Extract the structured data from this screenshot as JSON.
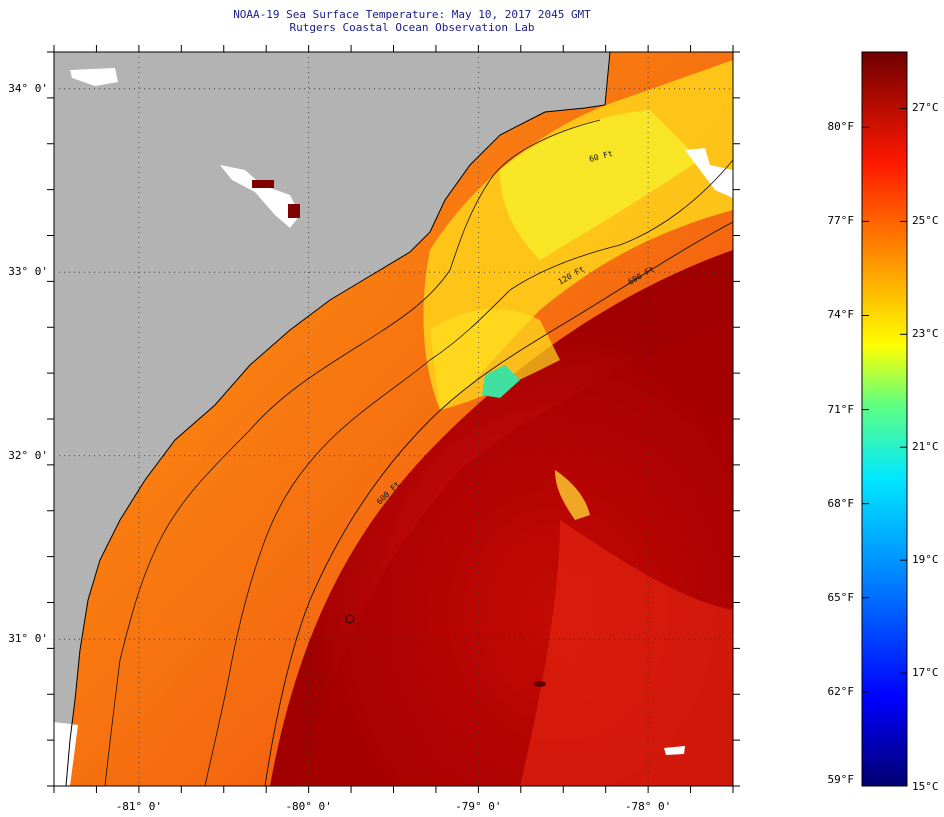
{
  "header": {
    "title": "NOAA-19 Sea Surface Temperature:  May 10, 2017 2045 GMT",
    "subtitle": "Rutgers Coastal Ocean Observation Lab"
  },
  "map": {
    "lat_labels": [
      {
        "label": "34° 0'",
        "lat": 34.0
      },
      {
        "label": "33° 0'",
        "lat": 33.0
      },
      {
        "label": "32° 0'",
        "lat": 32.0
      },
      {
        "label": "31° 0'",
        "lat": 31.0
      }
    ],
    "lon_labels": [
      {
        "label": "-81° 0'",
        "lon": -81.0
      },
      {
        "label": "-80° 0'",
        "lon": -80.0
      },
      {
        "label": "-79° 0'",
        "lon": -79.0
      },
      {
        "label": "-78° 0'",
        "lon": -78.0
      }
    ],
    "lat_range": [
      30.2,
      34.2
    ],
    "lon_range": [
      -81.5,
      -77.5
    ],
    "isobath_labels": [
      "120 Ft",
      "600 Ft",
      "60 Ft"
    ],
    "colors": {
      "land": "#b3b3b3",
      "gulf_stream": "#b00000",
      "shelf_warm": "#f05010",
      "shelf_mid": "#ff9b10",
      "near_shore_cool": "#f5e61e",
      "cold_patch": "#40e0a0"
    }
  },
  "colorbar": {
    "f_labels": [
      "80°F",
      "77°F",
      "74°F",
      "71°F",
      "68°F",
      "65°F",
      "62°F",
      "59°F"
    ],
    "c_labels": [
      "27°C",
      "25°C",
      "23°C",
      "21°C",
      "19°C",
      "17°C",
      "15°C"
    ],
    "range_c": [
      15,
      28
    ],
    "stops": [
      "#000080",
      "#0000ff",
      "#0080ff",
      "#00ffff",
      "#40ff80",
      "#ffff00",
      "#ff8000",
      "#ff0000",
      "#800000"
    ]
  }
}
